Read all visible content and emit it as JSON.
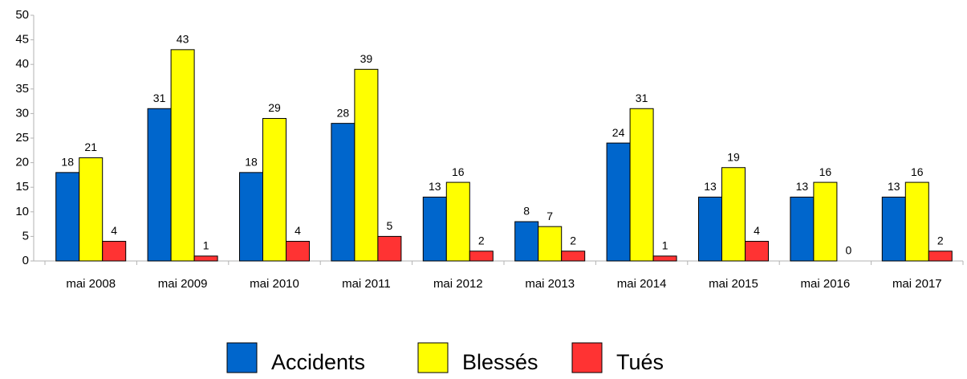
{
  "chart_data": {
    "type": "bar",
    "categories": [
      "mai 2008",
      "mai 2009",
      "mai 2010",
      "mai 2011",
      "mai 2012",
      "mai 2013",
      "mai 2014",
      "mai 2015",
      "mai 2016",
      "mai 2017"
    ],
    "series": [
      {
        "name": "Accidents",
        "color": "#0066cc",
        "values": [
          18,
          31,
          18,
          28,
          13,
          8,
          24,
          13,
          13,
          13
        ]
      },
      {
        "name": "Blessés",
        "color": "#ffff00",
        "values": [
          21,
          43,
          29,
          39,
          16,
          7,
          31,
          19,
          16,
          16
        ]
      },
      {
        "name": "Tués",
        "color": "#ff3333",
        "values": [
          4,
          1,
          4,
          5,
          2,
          2,
          1,
          4,
          0,
          2
        ]
      }
    ],
    "ylim": [
      0,
      50
    ],
    "yticks": [
      0,
      5,
      10,
      15,
      20,
      25,
      30,
      35,
      40,
      45,
      50
    ],
    "grid": false,
    "legend": "bottom"
  }
}
